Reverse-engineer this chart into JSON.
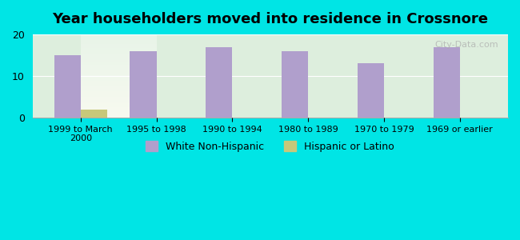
{
  "title": "Year householders moved into residence in Crossnore",
  "categories": [
    "1999 to March\n2000",
    "1995 to 1998",
    "1990 to 1994",
    "1980 to 1989",
    "1970 to 1979",
    "1969 or earlier"
  ],
  "white_values": [
    15,
    16,
    17,
    16,
    13,
    17
  ],
  "hispanic_values": [
    2,
    0,
    0,
    0,
    0,
    0
  ],
  "white_color": "#b09fcc",
  "hispanic_color": "#c8c87a",
  "background_outer": "#00e5e5",
  "background_inner_top": "#e8f0e8",
  "background_inner_bottom": "#d8eedd",
  "ylim": [
    0,
    20
  ],
  "yticks": [
    0,
    10,
    20
  ],
  "bar_width": 0.35,
  "legend_white": "White Non-Hispanic",
  "legend_hispanic": "Hispanic or Latino",
  "watermark": "City-Data.com"
}
